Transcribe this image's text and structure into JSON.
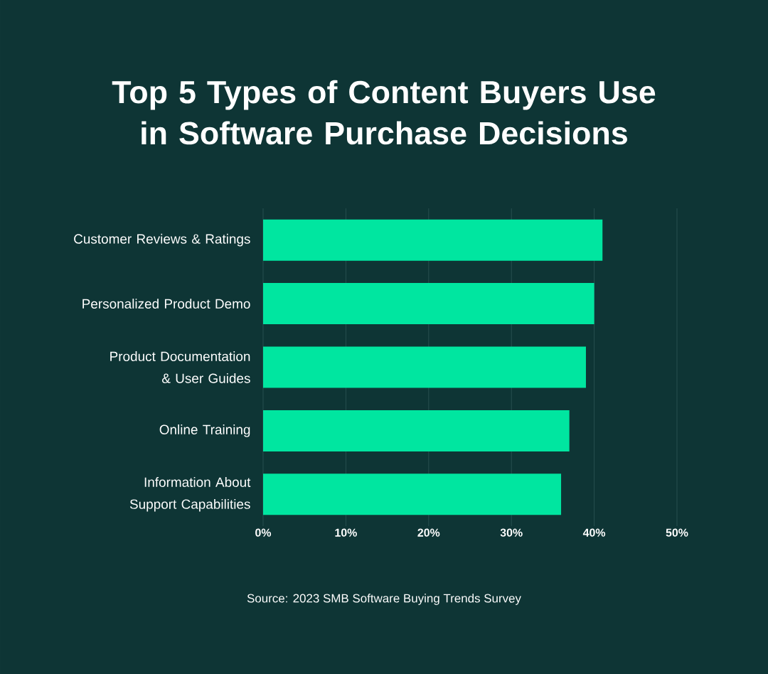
{
  "chart_data": {
    "type": "bar",
    "orientation": "horizontal",
    "title": "Top 5 Types of Content Buyers Use in Software Purchase Decisions",
    "categories": [
      "Customer Reviews & Ratings",
      "Personalized Product Demo",
      "Product Documentation & User Guides",
      "Online Training",
      "Information About Support Capabilities"
    ],
    "values": [
      41,
      40,
      39,
      37,
      36
    ],
    "color": "#00e6a0",
    "xlim": [
      0,
      50
    ],
    "xticks": [
      {
        "value": 0,
        "label": "0%"
      },
      {
        "value": 10,
        "label": "10%"
      },
      {
        "value": 20,
        "label": "20%"
      },
      {
        "value": 30,
        "label": "30%"
      },
      {
        "value": 40,
        "label": "40%"
      },
      {
        "value": 50,
        "label": "50%"
      }
    ],
    "grid": "x",
    "annotations": [
      "Source: 2023 SMB Software Buying Trends Survey"
    ]
  }
}
